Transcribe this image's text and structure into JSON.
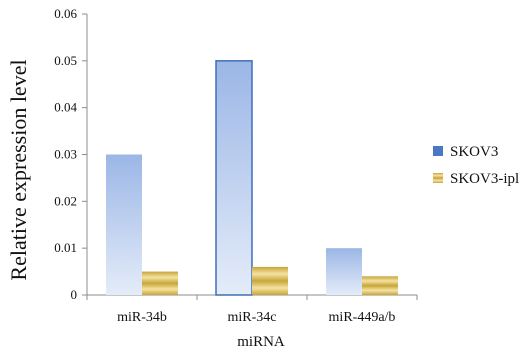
{
  "colors": {
    "skov3_top": "#9bb6e6",
    "skov3_bottom": "#e4ecf9",
    "skov3_edge": "#3f6fb8",
    "skov3_legend": "#4a79c4",
    "ipl_dark": "#c8a53a",
    "ipl_light": "#f4e2a2",
    "axis": "#8c8c8c"
  },
  "chart_data": {
    "type": "bar",
    "title": "",
    "xlabel": "miRNA",
    "ylabel": "Relative expression level",
    "categories": [
      "miR-34b",
      "miR-34c",
      "miR-449a/b"
    ],
    "series": [
      {
        "name": "SKOV3",
        "values": [
          0.03,
          0.05,
          0.01
        ]
      },
      {
        "name": "SKOV3-ipl",
        "values": [
          0.005,
          0.006,
          0.004
        ]
      }
    ],
    "ylim": [
      0,
      0.06
    ],
    "yticks": [
      "0",
      "0.01",
      "0.02",
      "0.03",
      "0.04",
      "0.05",
      "0.06"
    ],
    "grid": false,
    "legend_position": "right"
  }
}
